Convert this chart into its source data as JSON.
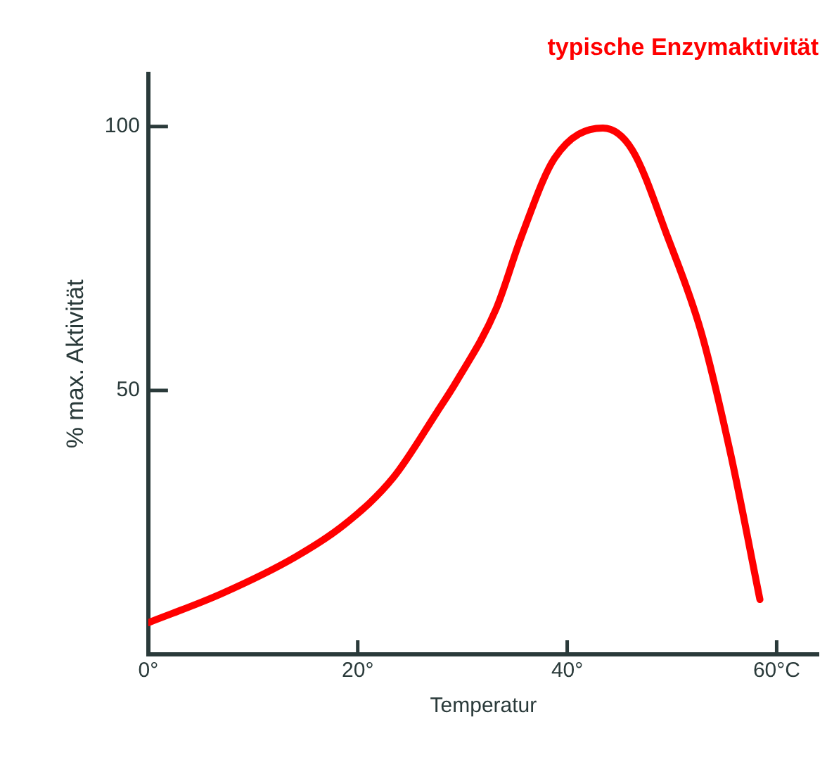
{
  "chart_data": {
    "type": "line",
    "title": "typische Enzymaktivität",
    "xlabel": "Temperatur",
    "ylabel": "% max. Aktivität",
    "xlim": [
      0,
      64
    ],
    "ylim": [
      0,
      110
    ],
    "xticks": [
      {
        "value": 0,
        "label": "0°"
      },
      {
        "value": 20,
        "label": "20°"
      },
      {
        "value": 40,
        "label": "40°"
      },
      {
        "value": 60,
        "label": "60°C"
      }
    ],
    "yticks": [
      50,
      100
    ],
    "series": [
      {
        "color": "#ff0000",
        "x": [
          0,
          7,
          14,
          18.8,
          23.4,
          27.6,
          29.4,
          33.2,
          35.6,
          38.8,
          43.4,
          46.2,
          49.6,
          52.8,
          55.6,
          58.4
        ],
        "values": [
          6,
          11.5,
          18.4,
          24.7,
          33.5,
          46,
          51.6,
          65.4,
          79,
          94,
          99.7,
          95.6,
          79,
          61,
          38,
          10.4
        ]
      }
    ],
    "grid": false,
    "legend": false,
    "marker": "none",
    "line_style": "solid"
  }
}
